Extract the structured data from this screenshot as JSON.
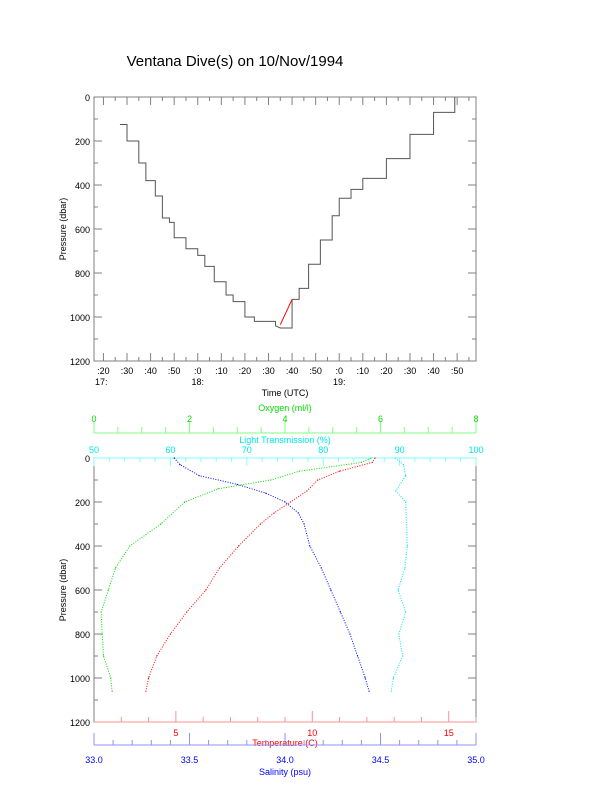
{
  "title": "Ventana Dive(s) on 10/Nov/1994",
  "colors": {
    "temperature": "#ff0000",
    "salinity": "#0000ff",
    "oxygen": "#00dd00",
    "light": "#00e5e5",
    "track": "#000000",
    "axis": "#808080"
  },
  "chart_data": [
    {
      "type": "line",
      "title": "Ventana Dive(s) on 10/Nov/1994",
      "xlabel": "Time (UTC)",
      "ylabel": "Pressure (dbar)",
      "xlim_minutes_after_17h": [
        16,
        178
      ],
      "ylim": [
        1200,
        0
      ],
      "yticks": [
        "0",
        "200",
        "400",
        "600",
        "800",
        "1000",
        "1200"
      ],
      "xticks": [
        {
          "m": 20,
          "label": ":20"
        },
        {
          "m": 30,
          "label": ":30"
        },
        {
          "m": 40,
          "label": ":40"
        },
        {
          "m": 50,
          "label": ":50"
        },
        {
          "m": 60,
          "label": ":0",
          "hour": "18:"
        },
        {
          "m": 70,
          "label": ":10"
        },
        {
          "m": 80,
          "label": ":20"
        },
        {
          "m": 90,
          "label": ":30"
        },
        {
          "m": 100,
          "label": ":40"
        },
        {
          "m": 110,
          "label": ":50"
        },
        {
          "m": 120,
          "label": ":0",
          "hour": "19:"
        },
        {
          "m": 130,
          "label": ":10"
        },
        {
          "m": 140,
          "label": ":20"
        },
        {
          "m": 150,
          "label": ":30"
        },
        {
          "m": 160,
          "label": ":40"
        },
        {
          "m": 170,
          "label": ":50"
        }
      ],
      "first_hour_label": "17:",
      "series": [
        {
          "name": "dive track",
          "points": [
            [
              27,
              125
            ],
            [
              30,
              200
            ],
            [
              35,
              300
            ],
            [
              38,
              380
            ],
            [
              42,
              450
            ],
            [
              45,
              550
            ],
            [
              48,
              570
            ],
            [
              50,
              640
            ],
            [
              55,
              690
            ],
            [
              60,
              720
            ],
            [
              63,
              770
            ],
            [
              67,
              840
            ],
            [
              72,
              900
            ],
            [
              75,
              930
            ],
            [
              80,
              1000
            ],
            [
              84,
              1020
            ],
            [
              90,
              1020
            ],
            [
              93,
              1040
            ],
            [
              95,
              1050
            ],
            [
              100,
              920
            ],
            [
              103,
              870
            ],
            [
              107,
              760
            ],
            [
              112,
              650
            ],
            [
              117,
              540
            ],
            [
              120,
              460
            ],
            [
              125,
              420
            ],
            [
              130,
              370
            ],
            [
              140,
              280
            ],
            [
              150,
              170
            ],
            [
              160,
              70
            ],
            [
              169,
              0
            ]
          ]
        }
      ]
    },
    {
      "type": "scatter",
      "ylabel": "Pressure (dbar)",
      "ylim": [
        1200,
        0
      ],
      "yticks": [
        "0",
        "200",
        "400",
        "600",
        "800",
        "1000",
        "1200"
      ],
      "axes": {
        "oxygen": {
          "label": "Oxygen (ml/l)",
          "range": [
            0,
            8
          ],
          "ticks": [
            "0",
            "2",
            "4",
            "6",
            "8"
          ]
        },
        "light": {
          "label": "Light Transmission (%)",
          "range": [
            50,
            100
          ],
          "ticks": [
            "50",
            "60",
            "70",
            "80",
            "90",
            "100"
          ]
        },
        "temperature": {
          "label": "Temperature (C)",
          "range": [
            2,
            16
          ],
          "ticks": [
            "5",
            "10",
            "15"
          ]
        },
        "salinity": {
          "label": "Salinity (psu)",
          "range": [
            33.0,
            35.0
          ],
          "ticks": [
            "33.0",
            "33.5",
            "34.0",
            "34.5",
            "35.0"
          ]
        }
      },
      "series": [
        {
          "name": "temperature",
          "points": [
            [
              0,
              12.3
            ],
            [
              20,
              12.2
            ],
            [
              60,
              11.0
            ],
            [
              100,
              10.2
            ],
            [
              150,
              9.8
            ],
            [
              200,
              9.2
            ],
            [
              250,
              8.6
            ],
            [
              300,
              8.1
            ],
            [
              400,
              7.3
            ],
            [
              500,
              6.6
            ],
            [
              600,
              6.1
            ],
            [
              700,
              5.4
            ],
            [
              800,
              4.8
            ],
            [
              900,
              4.3
            ],
            [
              1000,
              4.0
            ],
            [
              1060,
              3.9
            ]
          ]
        },
        {
          "name": "salinity",
          "points": [
            [
              0,
              33.42
            ],
            [
              30,
              33.45
            ],
            [
              80,
              33.55
            ],
            [
              120,
              33.75
            ],
            [
              160,
              33.9
            ],
            [
              200,
              34.0
            ],
            [
              250,
              34.07
            ],
            [
              300,
              34.1
            ],
            [
              400,
              34.13
            ],
            [
              500,
              34.19
            ],
            [
              600,
              34.24
            ],
            [
              700,
              34.29
            ],
            [
              800,
              34.34
            ],
            [
              900,
              34.38
            ],
            [
              1000,
              34.42
            ],
            [
              1060,
              34.44
            ]
          ]
        },
        {
          "name": "oxygen",
          "points": [
            [
              0,
              5.8
            ],
            [
              20,
              5.6
            ],
            [
              60,
              4.3
            ],
            [
              100,
              3.7
            ],
            [
              140,
              2.6
            ],
            [
              200,
              1.9
            ],
            [
              300,
              1.4
            ],
            [
              400,
              0.75
            ],
            [
              500,
              0.45
            ],
            [
              600,
              0.3
            ],
            [
              700,
              0.15
            ],
            [
              800,
              0.17
            ],
            [
              900,
              0.2
            ],
            [
              1000,
              0.35
            ],
            [
              1060,
              0.38
            ]
          ]
        },
        {
          "name": "light",
          "points": [
            [
              0,
              89.4
            ],
            [
              30,
              90.5
            ],
            [
              80,
              90.8
            ],
            [
              150,
              89.5
            ],
            [
              200,
              90.8
            ],
            [
              400,
              91.0
            ],
            [
              500,
              90.7
            ],
            [
              600,
              89.8
            ],
            [
              700,
              90.8
            ],
            [
              800,
              89.9
            ],
            [
              900,
              90.4
            ],
            [
              1000,
              89.2
            ],
            [
              1060,
              88.9
            ]
          ]
        }
      ]
    }
  ]
}
